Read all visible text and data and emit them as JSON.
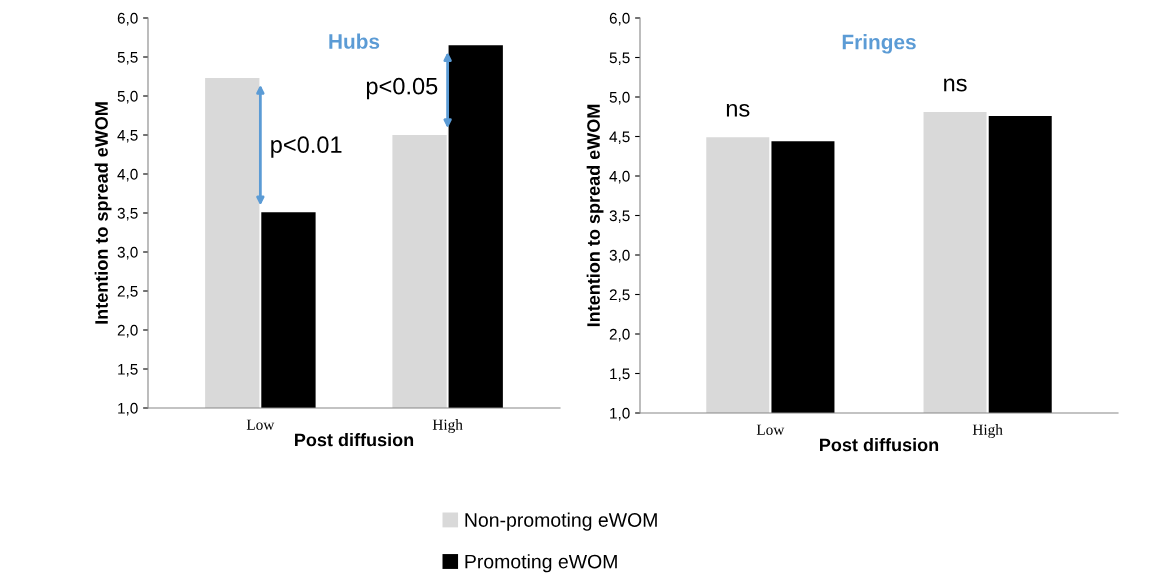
{
  "chart_data": [
    {
      "type": "bar",
      "title": "Hubs",
      "xlabel": "Post diffusion",
      "ylabel": "Intention to spread eWOM",
      "categories": [
        "Low",
        "High"
      ],
      "series": [
        {
          "name": "Non-promoting eWOM",
          "color": "#d9d9d9",
          "values": [
            5.23,
            4.5
          ]
        },
        {
          "name": "Promoting eWOM",
          "color": "#000000",
          "values": [
            3.51,
            5.65
          ]
        }
      ],
      "ylim": [
        1.0,
        6.0
      ],
      "yticks": [
        {
          "value": 1.0,
          "label": "1,0"
        },
        {
          "value": 1.5,
          "label": "1,5"
        },
        {
          "value": 2.0,
          "label": "2,0"
        },
        {
          "value": 2.5,
          "label": "2,5"
        },
        {
          "value": 3.0,
          "label": "3,0"
        },
        {
          "value": 3.5,
          "label": "3,5"
        },
        {
          "value": 4.0,
          "label": "4,0"
        },
        {
          "value": 4.5,
          "label": "4,5"
        },
        {
          "value": 5.0,
          "label": "5,0"
        },
        {
          "value": 5.5,
          "label": "5,5"
        },
        {
          "value": 6.0,
          "label": "6,0"
        }
      ],
      "annotations": [
        {
          "text": "p<0.01",
          "x": "Low",
          "y": 4.35
        },
        {
          "text": "p<0.05",
          "x": "High",
          "y": 5.1
        }
      ],
      "legend": "bottom",
      "grid": false
    },
    {
      "type": "bar",
      "title": "Fringes",
      "xlabel": "Post diffusion",
      "ylabel": "Intention to spread eWOM",
      "categories": [
        "Low",
        "High"
      ],
      "series": [
        {
          "color": "#d9d9d9",
          "values": [
            4.49,
            4.81
          ]
        },
        {
          "color": "#000000",
          "values": [
            4.44,
            4.76
          ]
        }
      ],
      "ylim": [
        1.0,
        6.0
      ],
      "yticks": [
        {
          "value": 1.0,
          "label": "1,0"
        },
        {
          "value": 1.5,
          "label": "1,5"
        },
        {
          "value": 2.0,
          "label": "2,0"
        },
        {
          "value": 2.5,
          "label": "2,5"
        },
        {
          "value": 3.0,
          "label": "3,0"
        },
        {
          "value": 3.5,
          "label": "3,5"
        },
        {
          "value": 4.0,
          "label": "4,0"
        },
        {
          "value": 4.5,
          "label": "4,5"
        },
        {
          "value": 5.0,
          "label": "5,0"
        },
        {
          "value": 5.5,
          "label": "5,5"
        },
        {
          "value": 6.0,
          "label": "6,0"
        }
      ],
      "annotations": [
        "ns",
        "ns"
      ],
      "grid": false
    }
  ]
}
